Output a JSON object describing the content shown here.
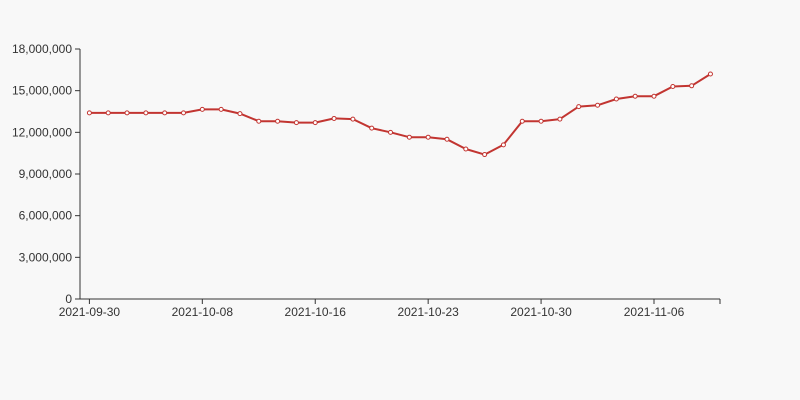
{
  "chart_data": {
    "type": "line",
    "title": "",
    "xlabel": "",
    "ylabel": "",
    "ylim": [
      0,
      18000000
    ],
    "y_ticks": [
      {
        "value": 0,
        "label": "0"
      },
      {
        "value": 3000000,
        "label": "3,000,000"
      },
      {
        "value": 6000000,
        "label": "6,000,000"
      },
      {
        "value": 9000000,
        "label": "9,000,000"
      },
      {
        "value": 12000000,
        "label": "12,000,000"
      },
      {
        "value": 15000000,
        "label": "15,000,000"
      },
      {
        "value": 18000000,
        "label": "18,000,000"
      }
    ],
    "x_ticks": [
      {
        "index": 0,
        "label": "2021-09-30"
      },
      {
        "index": 6,
        "label": "2021-10-08"
      },
      {
        "index": 12,
        "label": "2021-10-16"
      },
      {
        "index": 18,
        "label": "2021-10-23"
      },
      {
        "index": 24,
        "label": "2021-10-30"
      },
      {
        "index": 30,
        "label": "2021-11-06"
      }
    ],
    "grid": false,
    "legend": "none",
    "line_color": "#c23531",
    "marker_fill": "#ffffff",
    "series": [
      {
        "values": [
          13400000,
          13400000,
          13400000,
          13400000,
          13400000,
          13400000,
          13650000,
          13650000,
          13350000,
          12800000,
          12800000,
          12700000,
          12700000,
          13000000,
          12950000,
          12300000,
          12000000,
          11650000,
          11650000,
          11500000,
          10800000,
          10400000,
          11100000,
          12800000,
          12800000,
          12950000,
          13850000,
          13950000,
          14400000,
          14600000,
          14600000,
          15300000,
          15350000,
          16200000
        ]
      }
    ]
  }
}
